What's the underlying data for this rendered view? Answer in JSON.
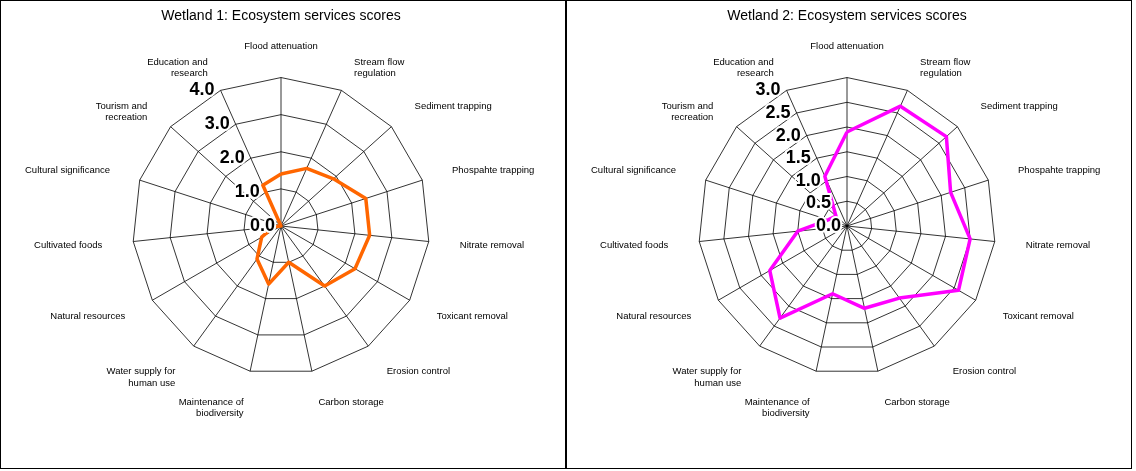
{
  "chart_data": [
    {
      "type": "radar",
      "title": "Wetland 1: Ecosystem services scores",
      "categories": [
        "Flood attenuation",
        "Stream flow regulation",
        "Sediment trapping",
        "Phospahte trapping",
        "Nitrate removal",
        "Toxicant removal",
        "Erosion control",
        "Carbon storage",
        "Maintenance of biodiversity",
        "Water supply for human use",
        "Natural resources",
        "Cultivated foods",
        "Cultural significance",
        "Tourism and recreation",
        "Education and research"
      ],
      "series": [
        {
          "color": "#ff6600",
          "values": [
            1.4,
            1.7,
            1.9,
            2.4,
            2.4,
            2.3,
            2.0,
            1.0,
            1.6,
            1.1,
            0.6,
            0.2,
            0,
            0,
            1.2
          ]
        }
      ],
      "ylim": [
        0,
        4
      ],
      "yticks": [
        {
          "value": 0,
          "label": "0.0"
        },
        {
          "value": 1,
          "label": "1.0"
        },
        {
          "value": 2,
          "label": "2.0"
        },
        {
          "value": 3,
          "label": "3.0"
        },
        {
          "value": 4,
          "label": "4.0"
        }
      ],
      "grid": true,
      "marker": "none"
    },
    {
      "type": "radar",
      "title": "Wetland 2: Ecosystem services scores",
      "categories": [
        "Flood attenuation",
        "Stream flow regulation",
        "Sediment trapping",
        "Phospahte trapping",
        "Nitrate removal",
        "Toxicant removal",
        "Erosion control",
        "Carbon storage",
        "Maintenance of biodiversity",
        "Water supply for human use",
        "Natural resources",
        "Cultivated foods",
        "Cultural significance",
        "Tourism and recreation",
        "Education and research"
      ],
      "series": [
        {
          "color": "#ff00ff",
          "values": [
            1.9,
            2.65,
            2.7,
            2.2,
            2.5,
            2.6,
            1.8,
            1.7,
            1.4,
            2.3,
            1.8,
            1.0,
            0.4,
            0.3,
            1.1
          ]
        }
      ],
      "ylim": [
        0,
        3
      ],
      "yticks": [
        {
          "value": 0,
          "label": "0.0"
        },
        {
          "value": 0.5,
          "label": "0.5"
        },
        {
          "value": 1,
          "label": "1.0"
        },
        {
          "value": 1.5,
          "label": "1.5"
        },
        {
          "value": 2,
          "label": "2.0"
        },
        {
          "value": 2.5,
          "label": "2.5"
        },
        {
          "value": 3,
          "label": "3.0"
        }
      ],
      "grid": true,
      "marker": "none"
    }
  ]
}
